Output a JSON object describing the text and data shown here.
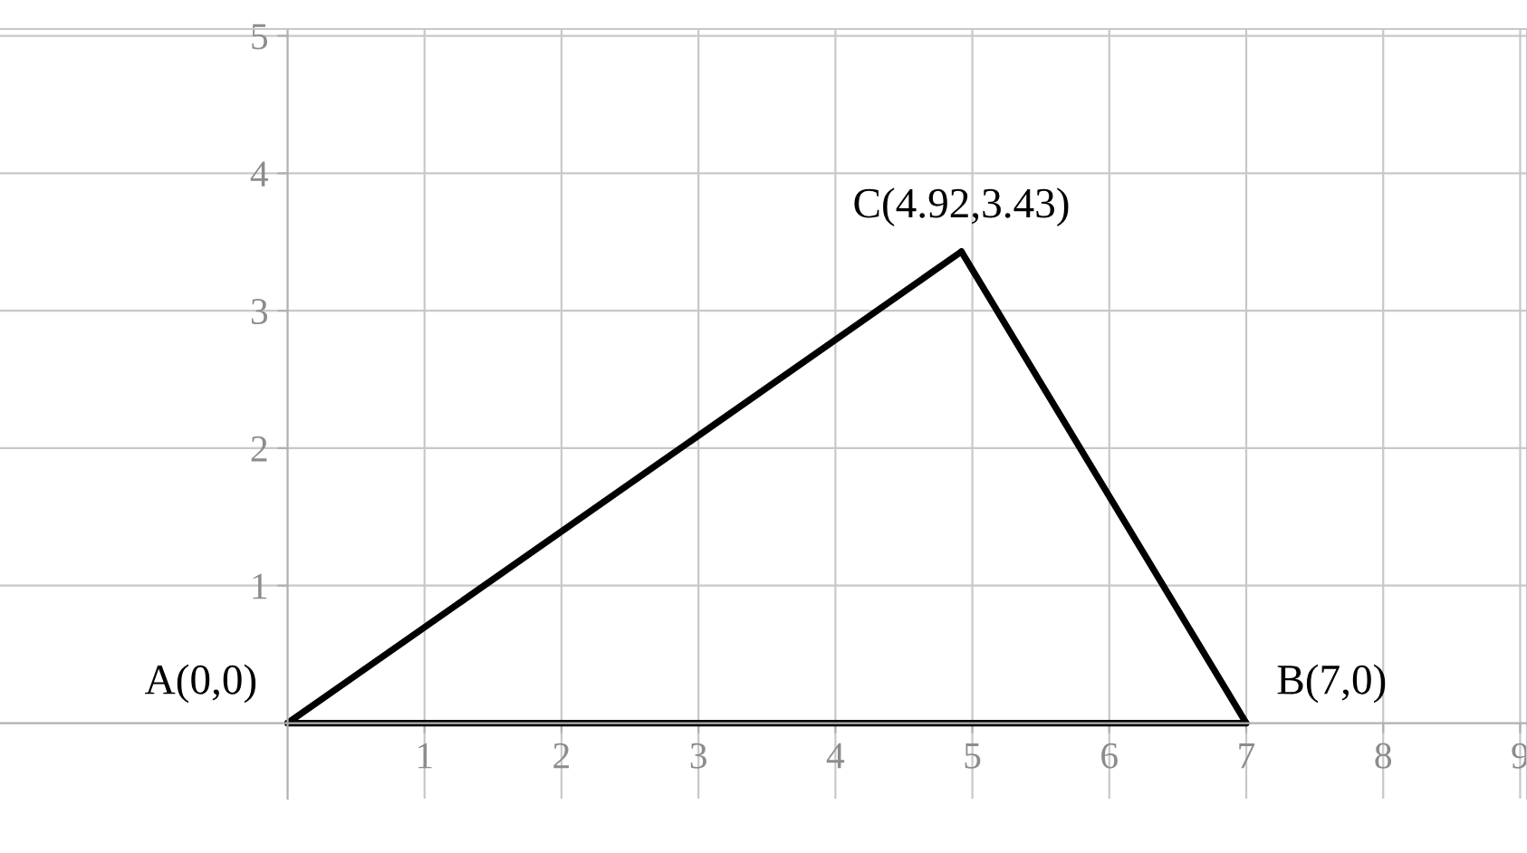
{
  "chart_data": {
    "type": "line",
    "series": [
      {
        "color": "#000000",
        "x": [
          0,
          7
        ],
        "values": [
          0,
          0
        ]
      },
      {
        "color": "#000000",
        "x": [
          4.92,
          7
        ],
        "values": [
          3.43,
          0
        ]
      },
      {
        "color": "#000000",
        "x": [
          0,
          4.92
        ],
        "values": [
          0,
          3.43
        ]
      }
    ],
    "xlim": [
      -2.1,
      9.05
    ],
    "ylim": [
      -0.55,
      5.05
    ],
    "xticks": [
      1,
      2,
      3,
      4,
      5,
      6,
      7,
      8,
      9
    ],
    "yticks": [
      1,
      2,
      3,
      4,
      5
    ],
    "grid": true,
    "marker": "none",
    "line_style": "solid",
    "annotations": [
      {
        "text": "A(0,0)",
        "x": 0,
        "y": 0
      },
      {
        "text": "B(7,0)",
        "x": 7,
        "y": 0
      },
      {
        "text": "C(4.92,3.43)",
        "x": 4.92,
        "y": 3.43
      }
    ]
  }
}
